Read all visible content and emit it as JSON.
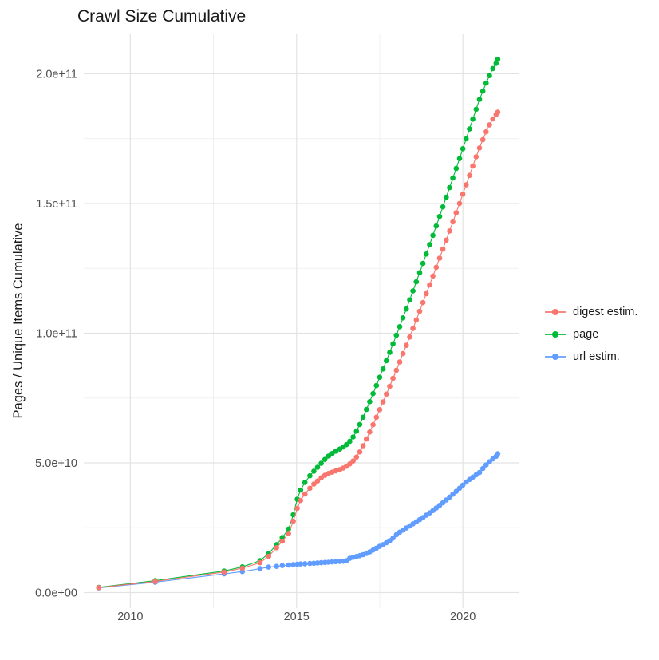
{
  "chart_data": {
    "type": "line",
    "title": "Crawl Size Cumulative",
    "xlabel": "",
    "ylabel": "Pages / Unique Items Cumulative",
    "legend_position": "right",
    "grid": true,
    "xlim": [
      2008.6,
      2021.7
    ],
    "ylim": [
      -6000000000.0,
      215200000000.0
    ],
    "x_ticks": [
      {
        "value": 2010,
        "label": "2010"
      },
      {
        "value": 2015,
        "label": "2015"
      },
      {
        "value": 2020,
        "label": "2020"
      }
    ],
    "x_minor_ticks": [
      2012.5,
      2017.5
    ],
    "y_ticks": [
      {
        "value": 0.0,
        "label": "0.0e+00"
      },
      {
        "value": 50000000000.0,
        "label": "5.0e+10"
      },
      {
        "value": 100000000000.0,
        "label": "1.0e+11"
      },
      {
        "value": 150000000000.0,
        "label": "1.5e+11"
      },
      {
        "value": 200000000000.0,
        "label": "2.0e+11"
      }
    ],
    "y_minor_ticks": [
      25000000000.0,
      75000000000.0,
      125000000000.0,
      175000000000.0
    ],
    "x": [
      2009.05,
      2010.75,
      2012.82,
      2013.37,
      2013.9,
      2014.16,
      2014.4,
      2014.57,
      2014.76,
      2014.9,
      2015.02,
      2015.12,
      2015.25,
      2015.4,
      2015.52,
      2015.63,
      2015.74,
      2015.85,
      2015.96,
      2016.07,
      2016.18,
      2016.3,
      2016.4,
      2016.5,
      2016.6,
      2016.7,
      2016.8,
      2016.9,
      2017.0,
      2017.1,
      2017.2,
      2017.3,
      2017.4,
      2017.5,
      2017.6,
      2017.7,
      2017.8,
      2017.9,
      2018.0,
      2018.1,
      2018.2,
      2018.3,
      2018.4,
      2018.5,
      2018.6,
      2018.7,
      2018.8,
      2018.9,
      2019.0,
      2019.1,
      2019.2,
      2019.3,
      2019.4,
      2019.5,
      2019.6,
      2019.7,
      2019.8,
      2019.9,
      2020.0,
      2020.1,
      2020.2,
      2020.3,
      2020.4,
      2020.5,
      2020.6,
      2020.7,
      2020.8,
      2020.9,
      2021.0,
      2021.05
    ],
    "series": [
      {
        "name": "digest estim.",
        "color": "#F8766D",
        "z": 3,
        "values": [
          1900000000.0,
          4300000000.0,
          7900000000.0,
          9400000000.0,
          11500000000.0,
          14000000000.0,
          17300000000.0,
          19800000000.0,
          22800000000.0,
          27500000000.0,
          32500000000.0,
          35500000000.0,
          38000000000.0,
          40200000000.0,
          41800000000.0,
          43000000000.0,
          44200000000.0,
          45200000000.0,
          45900000000.0,
          46400000000.0,
          46900000000.0,
          47400000000.0,
          48000000000.0,
          48700000000.0,
          49600000000.0,
          50700000000.0,
          52200000000.0,
          54200000000.0,
          56600000000.0,
          59200000000.0,
          61900000000.0,
          64700000000.0,
          67600000000.0,
          70500000000.0,
          73500000000.0,
          76500000000.0,
          79500000000.0,
          82600000000.0,
          85700000000.0,
          88900000000.0,
          92100000000.0,
          95300000000.0,
          98500000000.0,
          101800000000.0,
          105100000000.0,
          108400000000.0,
          111800000000.0,
          115200000000.0,
          118600000000.0,
          122000000000.0,
          125400000000.0,
          128900000000.0,
          132400000000.0,
          135900000000.0,
          139400000000.0,
          142900000000.0,
          146400000000.0,
          150000000000.0,
          153600000000.0,
          157200000000.0,
          160800000000.0,
          164400000000.0,
          168000000000.0,
          171400000000.0,
          174600000000.0,
          177600000000.0,
          180300000000.0,
          182600000000.0,
          184300000000.0,
          185200000000.0
        ]
      },
      {
        "name": "page",
        "color": "#00BA38",
        "z": 2,
        "values": [
          2000000000.0,
          4600000000.0,
          8300000000.0,
          9900000000.0,
          12300000000.0,
          15000000000.0,
          18500000000.0,
          21200000000.0,
          24500000000.0,
          30000000000.0,
          36000000000.0,
          39500000000.0,
          42500000000.0,
          45000000000.0,
          46800000000.0,
          48300000000.0,
          49800000000.0,
          51300000000.0,
          52600000000.0,
          53600000000.0,
          54500000000.0,
          55300000000.0,
          56100000000.0,
          57000000000.0,
          58300000000.0,
          60000000000.0,
          62200000000.0,
          64800000000.0,
          67600000000.0,
          70600000000.0,
          73600000000.0,
          76700000000.0,
          79800000000.0,
          83000000000.0,
          86200000000.0,
          89400000000.0,
          92600000000.0,
          95900000000.0,
          99200000000.0,
          102500000000.0,
          105900000000.0,
          109300000000.0,
          112800000000.0,
          116300000000.0,
          119800000000.0,
          123300000000.0,
          126900000000.0,
          130500000000.0,
          134100000000.0,
          137700000000.0,
          141300000000.0,
          145000000000.0,
          148700000000.0,
          152400000000.0,
          156100000000.0,
          159800000000.0,
          163500000000.0,
          167300000000.0,
          171100000000.0,
          174900000000.0,
          178700000000.0,
          182500000000.0,
          186300000000.0,
          190100000000.0,
          193300000000.0,
          196400000000.0,
          199300000000.0,
          202000000000.0,
          204000000000.0,
          205600000000.0
        ]
      },
      {
        "name": "url estim.",
        "color": "#619CFF",
        "z": 1,
        "values": [
          1800000000.0,
          4000000000.0,
          7200000000.0,
          8100000000.0,
          9200000000.0,
          9800000000.0,
          10100000000.0,
          10400000000.0,
          10600000000.0,
          10800000000.0,
          10900000000.0,
          11000000000.0,
          11100000000.0,
          11200000000.0,
          11300000000.0,
          11400000000.0,
          11500000000.0,
          11600000000.0,
          11700000000.0,
          11800000000.0,
          11900000000.0,
          12000000000.0,
          12100000000.0,
          12300000000.0,
          13200000000.0,
          13600000000.0,
          13900000000.0,
          14200000000.0,
          14600000000.0,
          15100000000.0,
          15700000000.0,
          16400000000.0,
          17100000000.0,
          17800000000.0,
          18500000000.0,
          19200000000.0,
          20000000000.0,
          21000000000.0,
          22300000000.0,
          23300000000.0,
          24100000000.0,
          24900000000.0,
          25700000000.0,
          26500000000.0,
          27300000000.0,
          28100000000.0,
          28900000000.0,
          29800000000.0,
          30700000000.0,
          31600000000.0,
          32600000000.0,
          33600000000.0,
          34600000000.0,
          35700000000.0,
          36800000000.0,
          37900000000.0,
          39000000000.0,
          40200000000.0,
          41400000000.0,
          42600000000.0,
          43600000000.0,
          44500000000.0,
          45400000000.0,
          46300000000.0,
          47800000000.0,
          49200000000.0,
          50400000000.0,
          51500000000.0,
          52500000000.0,
          53500000000.0
        ]
      }
    ],
    "colors": {
      "background": "#ffffff",
      "grid_major": "#e3e3e3",
      "grid_minor": "#f0f0f0",
      "tick_text": "#4d4d4d",
      "title_text": "#1a1a1a"
    }
  },
  "legend": {
    "items": [
      {
        "label": "digest estim.",
        "color": "#F8766D"
      },
      {
        "label": "page",
        "color": "#00BA38"
      },
      {
        "label": "url estim.",
        "color": "#619CFF"
      }
    ]
  }
}
